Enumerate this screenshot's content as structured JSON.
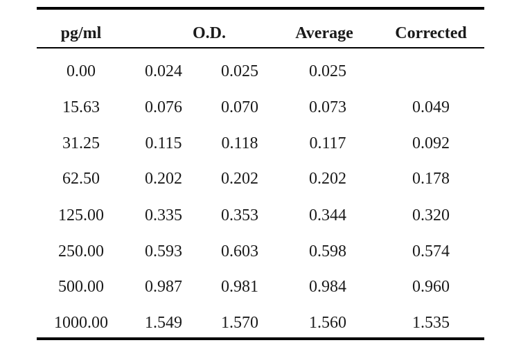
{
  "table": {
    "headers": {
      "concentration": "pg/ml",
      "od": "O.D.",
      "average": "Average",
      "corrected": "Corrected"
    },
    "rows": [
      {
        "concentration": "0.00",
        "od1": "0.024",
        "od2": "0.025",
        "average": "0.025",
        "corrected": ""
      },
      {
        "concentration": "15.63",
        "od1": "0.076",
        "od2": "0.070",
        "average": "0.073",
        "corrected": "0.049"
      },
      {
        "concentration": "31.25",
        "od1": "0.115",
        "od2": "0.118",
        "average": "0.117",
        "corrected": "0.092"
      },
      {
        "concentration": "62.50",
        "od1": "0.202",
        "od2": "0.202",
        "average": "0.202",
        "corrected": "0.178"
      },
      {
        "concentration": "125.00",
        "od1": "0.335",
        "od2": "0.353",
        "average": "0.344",
        "corrected": "0.320"
      },
      {
        "concentration": "250.00",
        "od1": "0.593",
        "od2": "0.603",
        "average": "0.598",
        "corrected": "0.574"
      },
      {
        "concentration": "500.00",
        "od1": "0.987",
        "od2": "0.981",
        "average": "0.984",
        "corrected": "0.960"
      },
      {
        "concentration": "1000.00",
        "od1": "1.549",
        "od2": "1.570",
        "average": "1.560",
        "corrected": "1.535"
      }
    ]
  }
}
